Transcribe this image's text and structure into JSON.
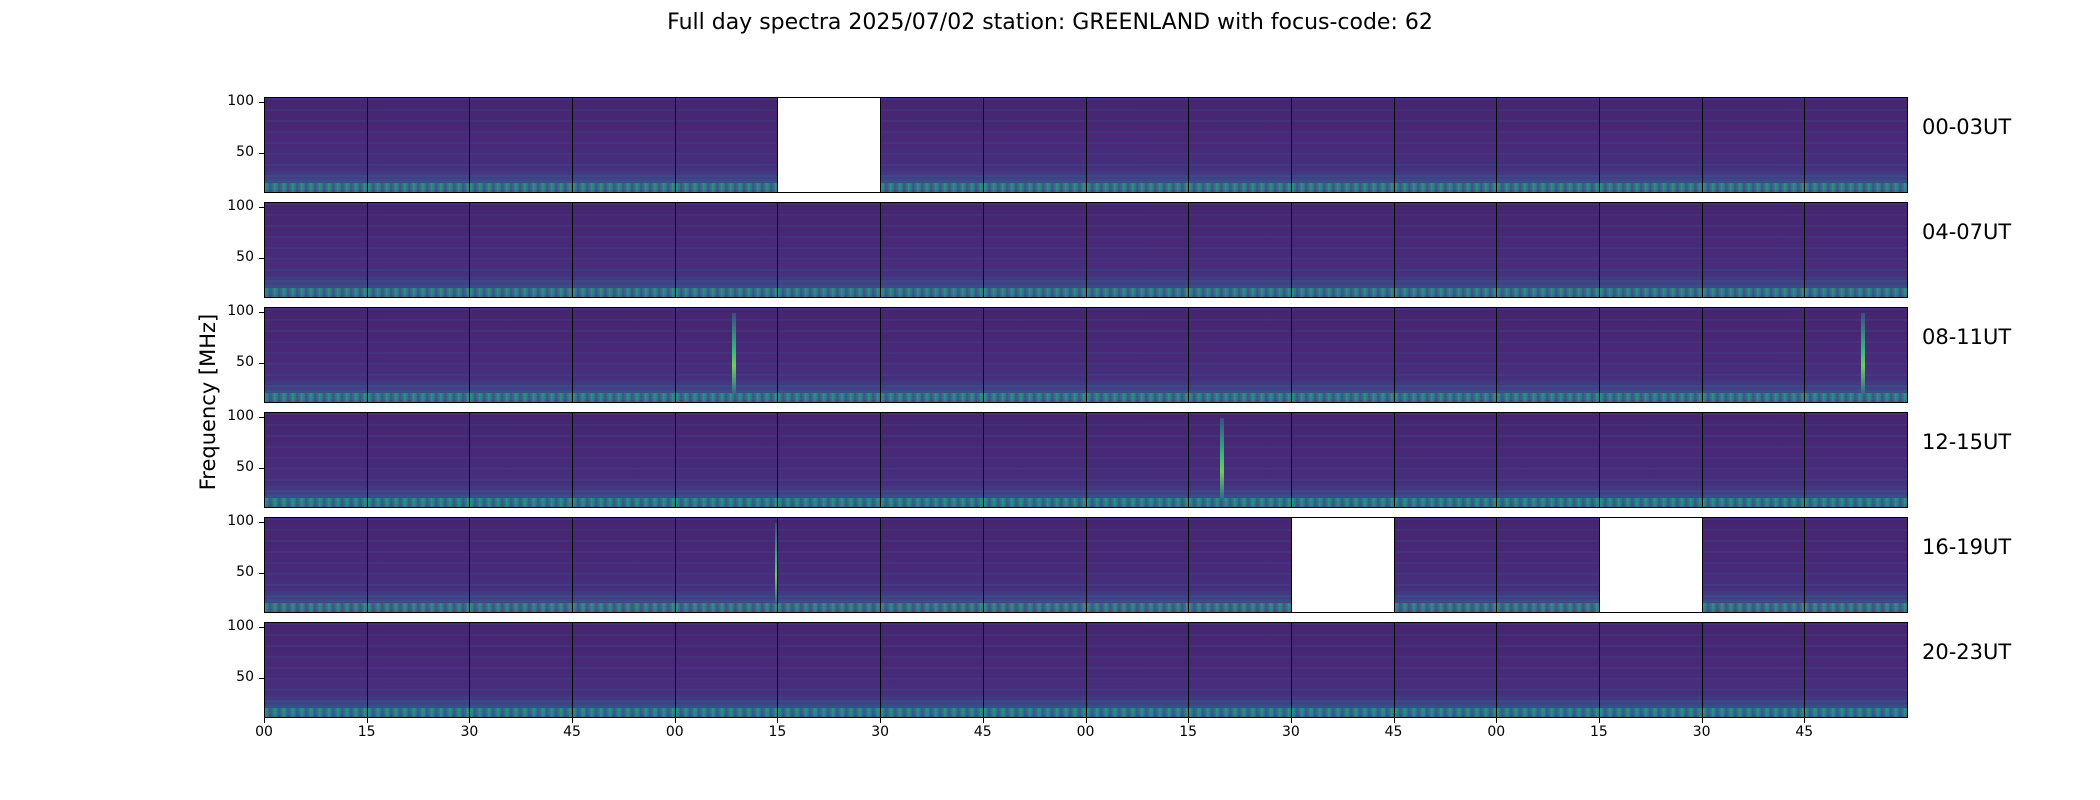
{
  "title": "Full day spectra 2025/07/02 station: GREENLAND with focus-code: 62",
  "chart_data": {
    "type": "heatmap",
    "title": "Full day spectra 2025/07/02 station: GREENLAND with focus-code: 62",
    "ylabel": "Frequency [MHz]",
    "xlabel": "",
    "ylim": [
      10,
      105
    ],
    "yticks": [
      "50",
      "100"
    ],
    "xticks": [
      "00",
      "15",
      "30",
      "45",
      "00",
      "15",
      "30",
      "45",
      "00",
      "15",
      "30",
      "45",
      "00",
      "15",
      "30",
      "45"
    ],
    "colormap": "viridis",
    "rows": [
      {
        "label": "00-03UT",
        "missing": [
          5
        ],
        "bursts": []
      },
      {
        "label": "04-07UT",
        "missing": [],
        "bursts": []
      },
      {
        "label": "08-11UT",
        "missing": [],
        "bursts": [
          [
            4,
            0.55
          ],
          [
            15,
            0.55
          ]
        ]
      },
      {
        "label": "12-15UT",
        "missing": [],
        "bursts": [
          [
            9,
            0.3
          ]
        ]
      },
      {
        "label": "16-19UT",
        "missing": [
          10,
          13
        ],
        "bursts": [
          [
            4,
            0.98
          ]
        ]
      },
      {
        "label": "20-23UT",
        "missing": [],
        "bursts": []
      }
    ]
  },
  "colors": {
    "background": "#ffffff",
    "spectrum_base": "#482878",
    "spectrum_high": "#35b779",
    "missing_panel": "#ffffff"
  }
}
